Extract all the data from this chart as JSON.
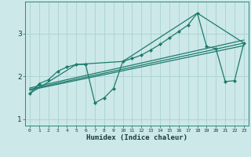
{
  "xlabel": "Humidex (Indice chaleur)",
  "bg_color": "#cce8e8",
  "line_color": "#1e7b6e",
  "grid_color": "#afd4d4",
  "xlim": [
    -0.5,
    23.5
  ],
  "ylim": [
    0.85,
    3.75
  ],
  "yticks": [
    1,
    2,
    3
  ],
  "xticks": [
    0,
    1,
    2,
    3,
    4,
    5,
    6,
    7,
    8,
    9,
    10,
    11,
    12,
    13,
    14,
    15,
    16,
    17,
    18,
    19,
    20,
    21,
    22,
    23
  ],
  "series1_x": [
    0,
    1,
    2,
    3,
    4,
    5,
    6,
    7,
    8,
    9,
    10,
    11,
    12,
    13,
    14,
    15,
    16,
    17,
    18,
    19,
    20,
    21,
    22,
    23
  ],
  "series1_y": [
    1.6,
    1.83,
    1.92,
    2.12,
    2.22,
    2.28,
    2.28,
    1.38,
    1.5,
    1.72,
    2.35,
    2.42,
    2.5,
    2.62,
    2.75,
    2.9,
    3.05,
    3.2,
    3.48,
    2.7,
    2.65,
    1.88,
    1.9,
    2.78
  ],
  "trend1_x": [
    0,
    23
  ],
  "trend1_y": [
    1.68,
    2.72
  ],
  "trend2_x": [
    0,
    23
  ],
  "trend2_y": [
    1.7,
    2.78
  ],
  "trend3_x": [
    0,
    23
  ],
  "trend3_y": [
    1.73,
    2.85
  ],
  "connect_x": [
    0,
    5,
    10,
    18,
    23
  ],
  "connect_y": [
    1.6,
    2.28,
    2.35,
    3.48,
    2.78
  ]
}
